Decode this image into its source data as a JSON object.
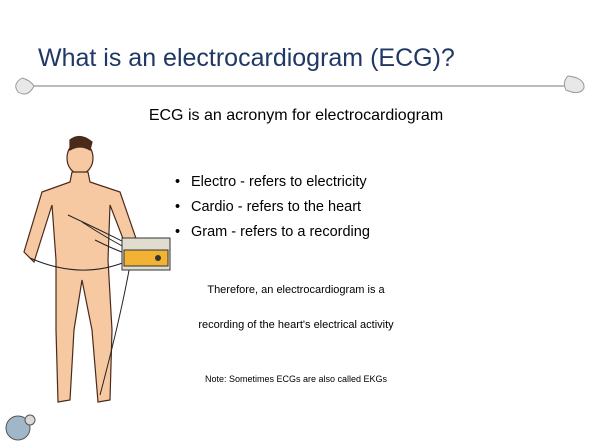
{
  "title": "What is an electrocardiogram (ECG)?",
  "subtitle": "ECG is an acronym for electrocardiogram",
  "bullets": [
    "Electro - refers to electricity",
    "Cardio - refers to the heart",
    "Gram - refers to a recording"
  ],
  "conclusion": [
    "Therefore, an electrocardiogram is a",
    "recording of the heart's electrical activity"
  ],
  "note": "Note: Sometimes ECGs are also called EKGs"
}
